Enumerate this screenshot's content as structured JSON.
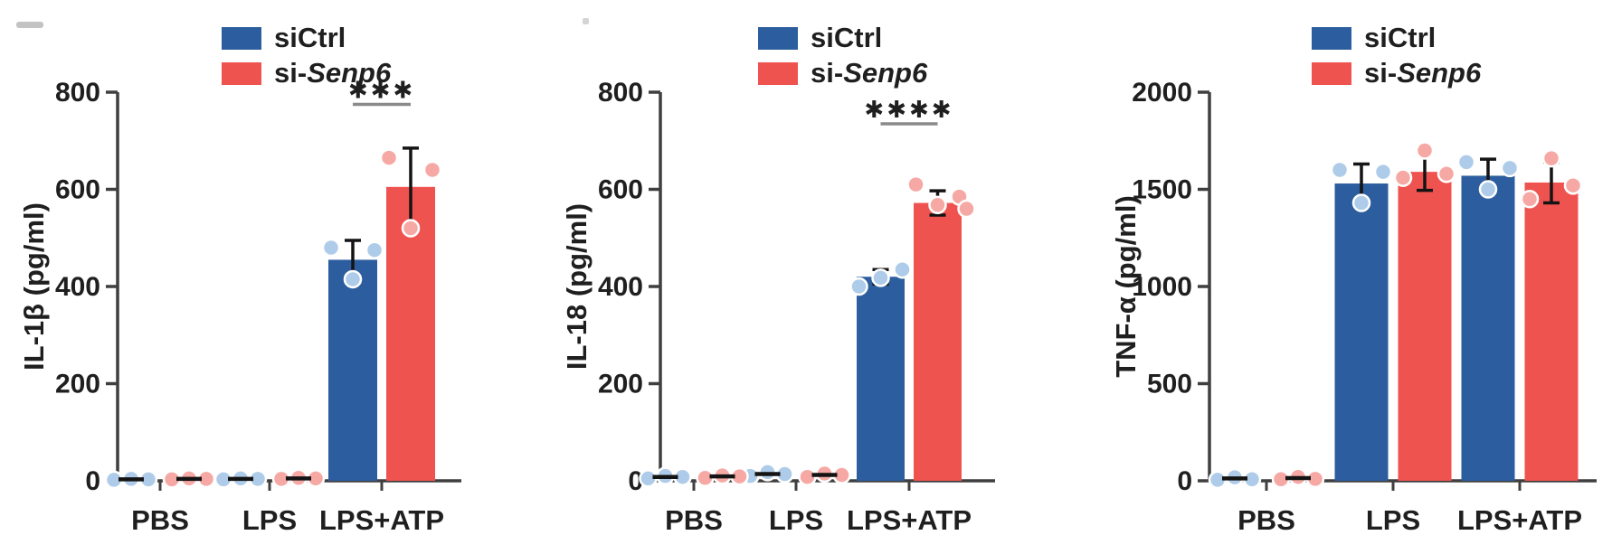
{
  "figure": {
    "description": "Cytokine secretion bar charts, siCtrl vs si-Senp6 knockdown",
    "panel_count": 3
  },
  "colors": {
    "siCtrl_bar": "#2c5d9e",
    "siSenp6_bar": "#ef5350",
    "siCtrl_point": "#aecce9",
    "siSenp6_point": "#f6a9a4",
    "axis": "#3f3f3f",
    "text": "#1f1f1f",
    "error_bar": "#141414",
    "sig_line": "#8a8a8a",
    "background": "#ffffff"
  },
  "legend": {
    "position": "top",
    "entries": [
      {
        "plain": "siCtrl",
        "italic": ""
      },
      {
        "plain": "si-",
        "italic": "Senp6"
      }
    ]
  },
  "chart_data": [
    {
      "type": "bar",
      "ylabel": "IL-1β (pg/ml)",
      "xlabel": "",
      "ylim": [
        0,
        800
      ],
      "yticks": [
        0,
        200,
        400,
        600,
        800
      ],
      "grid": false,
      "categories": [
        "PBS",
        "LPS",
        "LPS+ATP"
      ],
      "series": [
        {
          "name": "siCtrl",
          "values": [
            3,
            4,
            455
          ],
          "errors": [
            2,
            2,
            40
          ],
          "points": [
            [
              2,
              4,
              3
            ],
            [
              3,
              5,
              4
            ],
            [
              480,
              475,
              415
            ]
          ]
        },
        {
          "name": "si-Senp6",
          "values": [
            4,
            5,
            605
          ],
          "errors": [
            2,
            2,
            80
          ],
          "points": [
            [
              3,
              5,
              4
            ],
            [
              4,
              6,
              5
            ],
            [
              665,
              640,
              520
            ]
          ]
        }
      ],
      "significance": [
        {
          "category": "LPS+ATP",
          "label": "***",
          "line_y": 775
        }
      ]
    },
    {
      "type": "bar",
      "ylabel": "IL-18 (pg/ml)",
      "xlabel": "",
      "ylim": [
        0,
        800
      ],
      "yticks": [
        0,
        200,
        400,
        600,
        800
      ],
      "grid": false,
      "categories": [
        "PBS",
        "LPS",
        "LPS+ATP"
      ],
      "series": [
        {
          "name": "siCtrl",
          "values": [
            8,
            14,
            420
          ],
          "errors": [
            4,
            5,
            15
          ],
          "points": [
            [
              5,
              10,
              8
            ],
            [
              10,
              18,
              14
            ],
            [
              400,
              435,
              418
            ]
          ]
        },
        {
          "name": "si-Senp6",
          "values": [
            9,
            12,
            572
          ],
          "errors": [
            4,
            5,
            25
          ],
          "points": [
            [
              6,
              11,
              9
            ],
            [
              8,
              15,
              12
            ],
            [
              610,
              585,
              568,
              560
            ]
          ]
        }
      ],
      "significance": [
        {
          "category": "LPS+ATP",
          "label": "****",
          "line_y": 735
        }
      ]
    },
    {
      "type": "bar",
      "ylabel": "TNF-α (pg/ml)",
      "xlabel": "",
      "ylim": [
        0,
        2000
      ],
      "yticks": [
        0,
        500,
        1000,
        1500,
        2000
      ],
      "grid": false,
      "categories": [
        "PBS",
        "LPS",
        "LPS+ATP"
      ],
      "series": [
        {
          "name": "siCtrl",
          "values": [
            12,
            1530,
            1570
          ],
          "errors": [
            6,
            100,
            85
          ],
          "points": [
            [
              5,
              18,
              8
            ],
            [
              1600,
              1590,
              1430
            ],
            [
              1640,
              1610,
              1500
            ]
          ]
        },
        {
          "name": "si-Senp6",
          "values": [
            14,
            1590,
            1535
          ],
          "errors": [
            6,
            95,
            105
          ],
          "points": [
            [
              8,
              20,
              10
            ],
            [
              1560,
              1580,
              1700
            ],
            [
              1450,
              1520,
              1660
            ]
          ]
        }
      ],
      "significance": []
    }
  ]
}
